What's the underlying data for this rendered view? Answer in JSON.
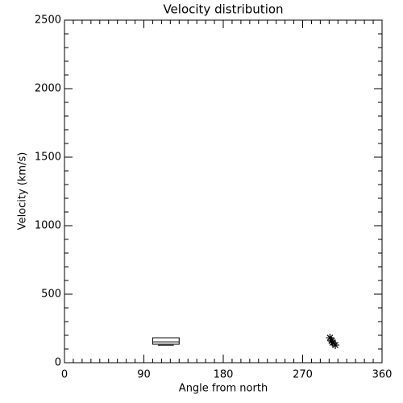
{
  "chart_data": {
    "type": "scatter",
    "title": "Velocity distribution",
    "xlabel": "Angle from north",
    "ylabel": "Velocity (km/s)",
    "xlim": [
      0,
      360
    ],
    "ylim": [
      0,
      2500
    ],
    "xticks": [
      0,
      90,
      180,
      270,
      360
    ],
    "yticks": [
      0,
      500,
      1000,
      1500,
      2000,
      2500
    ],
    "box": {
      "x": [
        100,
        130
      ],
      "low": 128,
      "q1": 135,
      "median": 152,
      "q3": 182
    },
    "x": [
      301,
      303,
      304,
      307
    ],
    "values": [
      182,
      159,
      147,
      129
    ],
    "marker": "asterisk",
    "color": "#000000"
  }
}
